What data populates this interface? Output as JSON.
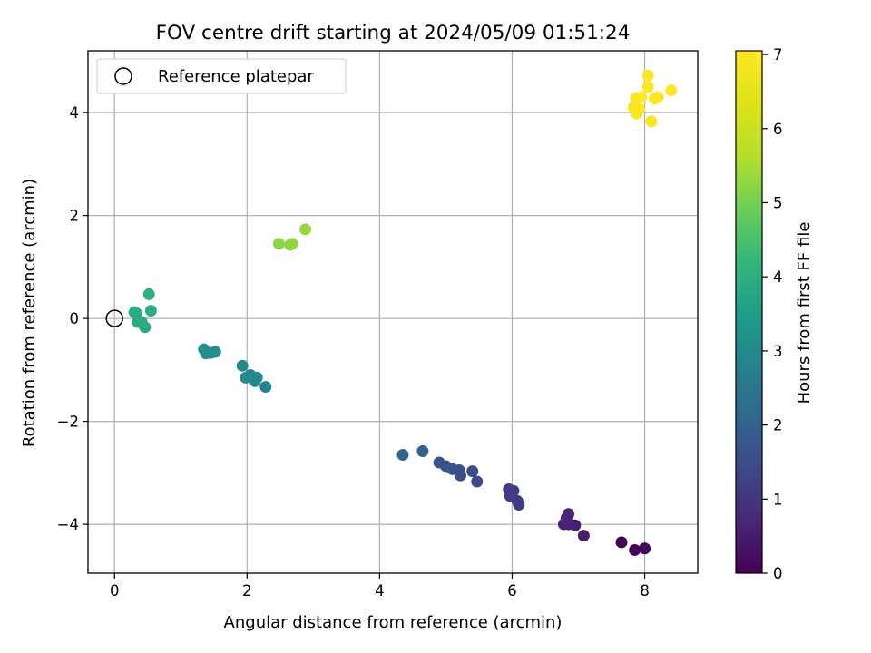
{
  "chart_data": {
    "type": "scatter",
    "title": "FOV centre drift starting at 2024/05/09 01:51:24",
    "xlabel": "Angular distance from reference (arcmin)",
    "ylabel": "Rotation from reference (arcmin)",
    "xlim": [
      -0.4,
      8.8
    ],
    "ylim": [
      -4.95,
      5.2
    ],
    "xticks": [
      0,
      2,
      4,
      6,
      8
    ],
    "yticks": [
      -4,
      -2,
      0,
      2,
      4
    ],
    "grid": true,
    "legend": {
      "placement": "top-left",
      "entries": [
        "Reference platepar"
      ]
    },
    "reference_point": {
      "x": 0,
      "y": 0
    },
    "colorbar": {
      "label": "Hours from first FF file",
      "colormap": "viridis",
      "range": [
        0,
        7.05
      ],
      "ticks": [
        0,
        1,
        2,
        3,
        4,
        5,
        6,
        7
      ]
    },
    "points": [
      {
        "x": 7.65,
        "y": -4.35,
        "t": 0.0
      },
      {
        "x": 7.85,
        "y": -4.5,
        "t": 0.05
      },
      {
        "x": 8.0,
        "y": -4.47,
        "t": 0.1
      },
      {
        "x": 7.08,
        "y": -4.22,
        "t": 0.5
      },
      {
        "x": 6.95,
        "y": -4.02,
        "t": 0.55
      },
      {
        "x": 6.85,
        "y": -4.0,
        "t": 0.6
      },
      {
        "x": 6.78,
        "y": -4.0,
        "t": 0.62
      },
      {
        "x": 6.85,
        "y": -3.8,
        "t": 0.65
      },
      {
        "x": 6.82,
        "y": -3.88,
        "t": 0.67
      },
      {
        "x": 6.1,
        "y": -3.62,
        "t": 1.05
      },
      {
        "x": 6.08,
        "y": -3.55,
        "t": 1.08
      },
      {
        "x": 5.97,
        "y": -3.45,
        "t": 1.1
      },
      {
        "x": 6.02,
        "y": -3.35,
        "t": 1.12
      },
      {
        "x": 5.95,
        "y": -3.32,
        "t": 1.15
      },
      {
        "x": 5.47,
        "y": -3.17,
        "t": 1.45
      },
      {
        "x": 5.4,
        "y": -2.97,
        "t": 1.5
      },
      {
        "x": 5.22,
        "y": -3.05,
        "t": 1.55
      },
      {
        "x": 5.2,
        "y": -2.95,
        "t": 1.58
      },
      {
        "x": 5.1,
        "y": -2.93,
        "t": 1.6
      },
      {
        "x": 5.0,
        "y": -2.87,
        "t": 1.63
      },
      {
        "x": 4.9,
        "y": -2.8,
        "t": 1.66
      },
      {
        "x": 4.65,
        "y": -2.58,
        "t": 1.9
      },
      {
        "x": 4.35,
        "y": -2.65,
        "t": 2.0
      },
      {
        "x": 2.28,
        "y": -1.33,
        "t": 2.9
      },
      {
        "x": 2.15,
        "y": -1.15,
        "t": 2.95
      },
      {
        "x": 2.12,
        "y": -1.22,
        "t": 2.97
      },
      {
        "x": 2.05,
        "y": -1.1,
        "t": 3.0
      },
      {
        "x": 1.98,
        "y": -1.15,
        "t": 3.02
      },
      {
        "x": 1.93,
        "y": -0.92,
        "t": 3.05
      },
      {
        "x": 1.52,
        "y": -0.65,
        "t": 3.15
      },
      {
        "x": 1.45,
        "y": -0.67,
        "t": 3.17
      },
      {
        "x": 1.38,
        "y": -0.68,
        "t": 3.19
      },
      {
        "x": 1.35,
        "y": -0.6,
        "t": 3.2
      },
      {
        "x": 0.46,
        "y": -0.17,
        "t": 3.85
      },
      {
        "x": 0.41,
        "y": -0.07,
        "t": 3.87
      },
      {
        "x": 0.35,
        "y": -0.07,
        "t": 3.9
      },
      {
        "x": 0.33,
        "y": 0.1,
        "t": 3.92
      },
      {
        "x": 0.3,
        "y": 0.12,
        "t": 3.94
      },
      {
        "x": 0.55,
        "y": 0.15,
        "t": 3.96
      },
      {
        "x": 0.52,
        "y": 0.47,
        "t": 4.0
      },
      {
        "x": 2.48,
        "y": 1.45,
        "t": 5.2
      },
      {
        "x": 2.65,
        "y": 1.43,
        "t": 5.25
      },
      {
        "x": 2.68,
        "y": 1.45,
        "t": 5.27
      },
      {
        "x": 2.88,
        "y": 1.73,
        "t": 5.35
      },
      {
        "x": 8.1,
        "y": 3.83,
        "t": 6.95
      },
      {
        "x": 7.88,
        "y": 3.98,
        "t": 6.97
      },
      {
        "x": 7.83,
        "y": 4.1,
        "t": 6.98
      },
      {
        "x": 7.92,
        "y": 4.07,
        "t": 6.99
      },
      {
        "x": 7.87,
        "y": 4.28,
        "t": 7.0
      },
      {
        "x": 7.95,
        "y": 4.3,
        "t": 7.0
      },
      {
        "x": 8.15,
        "y": 4.27,
        "t": 7.01
      },
      {
        "x": 8.2,
        "y": 4.3,
        "t": 7.02
      },
      {
        "x": 8.05,
        "y": 4.5,
        "t": 7.03
      },
      {
        "x": 8.4,
        "y": 4.43,
        "t": 7.04
      },
      {
        "x": 8.05,
        "y": 4.72,
        "t": 7.05
      }
    ]
  }
}
